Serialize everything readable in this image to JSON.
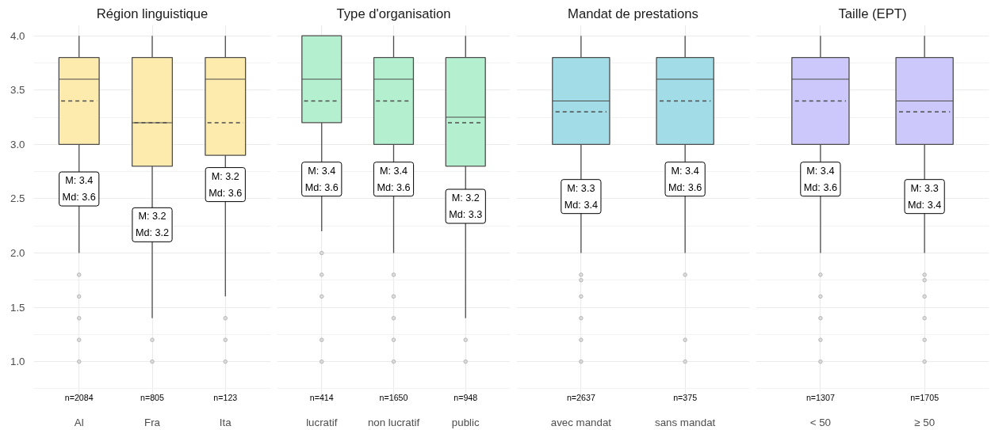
{
  "chart_data": [
    {
      "type": "box",
      "title": "Région linguistique",
      "categories": [
        "Al",
        "Fra",
        "Ita"
      ],
      "color": "#fdebae",
      "ylim": [
        0.6,
        4.1
      ],
      "yticks": [
        {
          "value": 1.0,
          "label": "1.0"
        },
        {
          "value": 1.5,
          "label": "1.5"
        },
        {
          "value": 2.0,
          "label": "2.0"
        },
        {
          "value": 2.5,
          "label": "2.5"
        },
        {
          "value": 3.0,
          "label": "3.0"
        },
        {
          "value": 3.5,
          "label": "3.5"
        },
        {
          "value": 4.0,
          "label": "4.0"
        }
      ],
      "grid": true,
      "boxes": [
        {
          "low": 2.0,
          "q1": 3.0,
          "median": 3.6,
          "q3": 3.8,
          "high": 4.0,
          "mean": 3.4,
          "outliers": [
            1.8,
            1.6,
            1.4,
            1.2,
            1.0
          ]
        },
        {
          "low": 1.4,
          "q1": 2.8,
          "median": 3.2,
          "q3": 3.8,
          "high": 4.0,
          "mean": 3.2,
          "outliers": [
            1.2,
            1.0
          ]
        },
        {
          "low": 1.6,
          "q1": 2.9,
          "median": 3.6,
          "q3": 3.8,
          "high": 4.0,
          "mean": 3.2,
          "outliers": [
            1.4,
            1.2,
            1.0
          ]
        }
      ],
      "annotations": [
        {
          "text": "M: 3.4\nMd: 3.6",
          "x": "Al",
          "y": 2.59
        },
        {
          "text": "M: 3.2\nMd: 3.2",
          "x": "Fra",
          "y": 2.26
        },
        {
          "text": "M: 3.2\nMd: 3.6",
          "x": "Ita",
          "y": 2.63
        },
        "n=2084",
        "n=805",
        "n=123"
      ]
    },
    {
      "type": "box",
      "title": "Type d'organisation",
      "categories": [
        "lucratif",
        "non lucratif",
        "public"
      ],
      "color": "#b4efcf",
      "ylim": [
        0.6,
        4.1
      ],
      "yticks": [
        1.0,
        1.5,
        2.0,
        2.5,
        3.0,
        3.5,
        4.0
      ],
      "grid": true,
      "tick_labels": "x",
      "boxes": [
        {
          "low": 2.2,
          "q1": 3.2,
          "median": 3.6,
          "q3": 4.0,
          "high": 4.0,
          "mean": 3.4,
          "outliers": [
            2.0,
            1.8,
            1.6,
            1.2,
            1.0
          ]
        },
        {
          "low": 2.0,
          "q1": 3.0,
          "median": 3.6,
          "q3": 3.8,
          "high": 4.0,
          "mean": 3.4,
          "outliers": [
            1.8,
            1.6,
            1.4,
            1.2,
            1.0
          ]
        },
        {
          "low": 1.4,
          "q1": 2.8,
          "median": 3.25,
          "q3": 3.8,
          "high": 4.0,
          "mean": 3.2,
          "outliers": [
            1.2,
            1.0
          ]
        }
      ],
      "annotations": [
        {
          "text": "M: 3.4\nMd: 3.6",
          "x": "lucratif",
          "y": 2.68
        },
        {
          "text": "M: 3.4\nMd: 3.6",
          "x": "non lucratif",
          "y": 2.68
        },
        {
          "text": "M: 3.2\nMd: 3.3",
          "x": "public",
          "y": 2.43
        },
        "n=414",
        "n=1650",
        "n=948"
      ]
    },
    {
      "type": "box",
      "title": "Mandat de prestations",
      "categories": [
        "avec mandat",
        "sans mandat"
      ],
      "color": "#a2dce6",
      "ylim": [
        0.6,
        4.1
      ],
      "yticks": [
        1.0,
        1.5,
        2.0,
        2.5,
        3.0,
        3.5,
        4.0
      ],
      "grid": true,
      "tick_labels": "x",
      "boxes": [
        {
          "low": 2.0,
          "q1": 3.0,
          "median": 3.4,
          "q3": 3.8,
          "high": 4.0,
          "mean": 3.3,
          "outliers": [
            1.8,
            1.75,
            1.6,
            1.4,
            1.2,
            1.0
          ]
        },
        {
          "low": 2.0,
          "q1": 3.0,
          "median": 3.6,
          "q3": 3.8,
          "high": 4.0,
          "mean": 3.4,
          "outliers": [
            1.8,
            1.2,
            1.0
          ]
        }
      ],
      "annotations": [
        {
          "text": "M: 3.3\nMd: 3.4",
          "x": "avec mandat",
          "y": 2.52
        },
        {
          "text": "M: 3.4\nMd: 3.6",
          "x": "sans mandat",
          "y": 2.68
        },
        "n=2637",
        "n=375"
      ]
    },
    {
      "type": "box",
      "title": "Taille (EPT)",
      "categories": [
        "< 50",
        "≥ 50"
      ],
      "color": "#ccc8fb",
      "ylim": [
        0.6,
        4.1
      ],
      "yticks": [
        1.0,
        1.5,
        2.0,
        2.5,
        3.0,
        3.5,
        4.0
      ],
      "grid": true,
      "tick_labels": "x",
      "boxes": [
        {
          "low": 2.0,
          "q1": 3.0,
          "median": 3.6,
          "q3": 3.8,
          "high": 4.0,
          "mean": 3.4,
          "outliers": [
            1.8,
            1.6,
            1.4,
            1.2,
            1.0
          ]
        },
        {
          "low": 2.0,
          "q1": 3.0,
          "median": 3.4,
          "q3": 3.8,
          "high": 4.0,
          "mean": 3.3,
          "outliers": [
            1.8,
            1.75,
            1.6,
            1.4,
            1.2,
            1.0
          ]
        }
      ],
      "annotations": [
        {
          "text": "M: 3.4\nMd: 3.6",
          "x": "< 50",
          "y": 2.68
        },
        {
          "text": "M: 3.3\nMd: 3.4",
          "x": "≥ 50",
          "y": 2.52
        },
        "n=1307",
        "n=1705"
      ]
    }
  ]
}
